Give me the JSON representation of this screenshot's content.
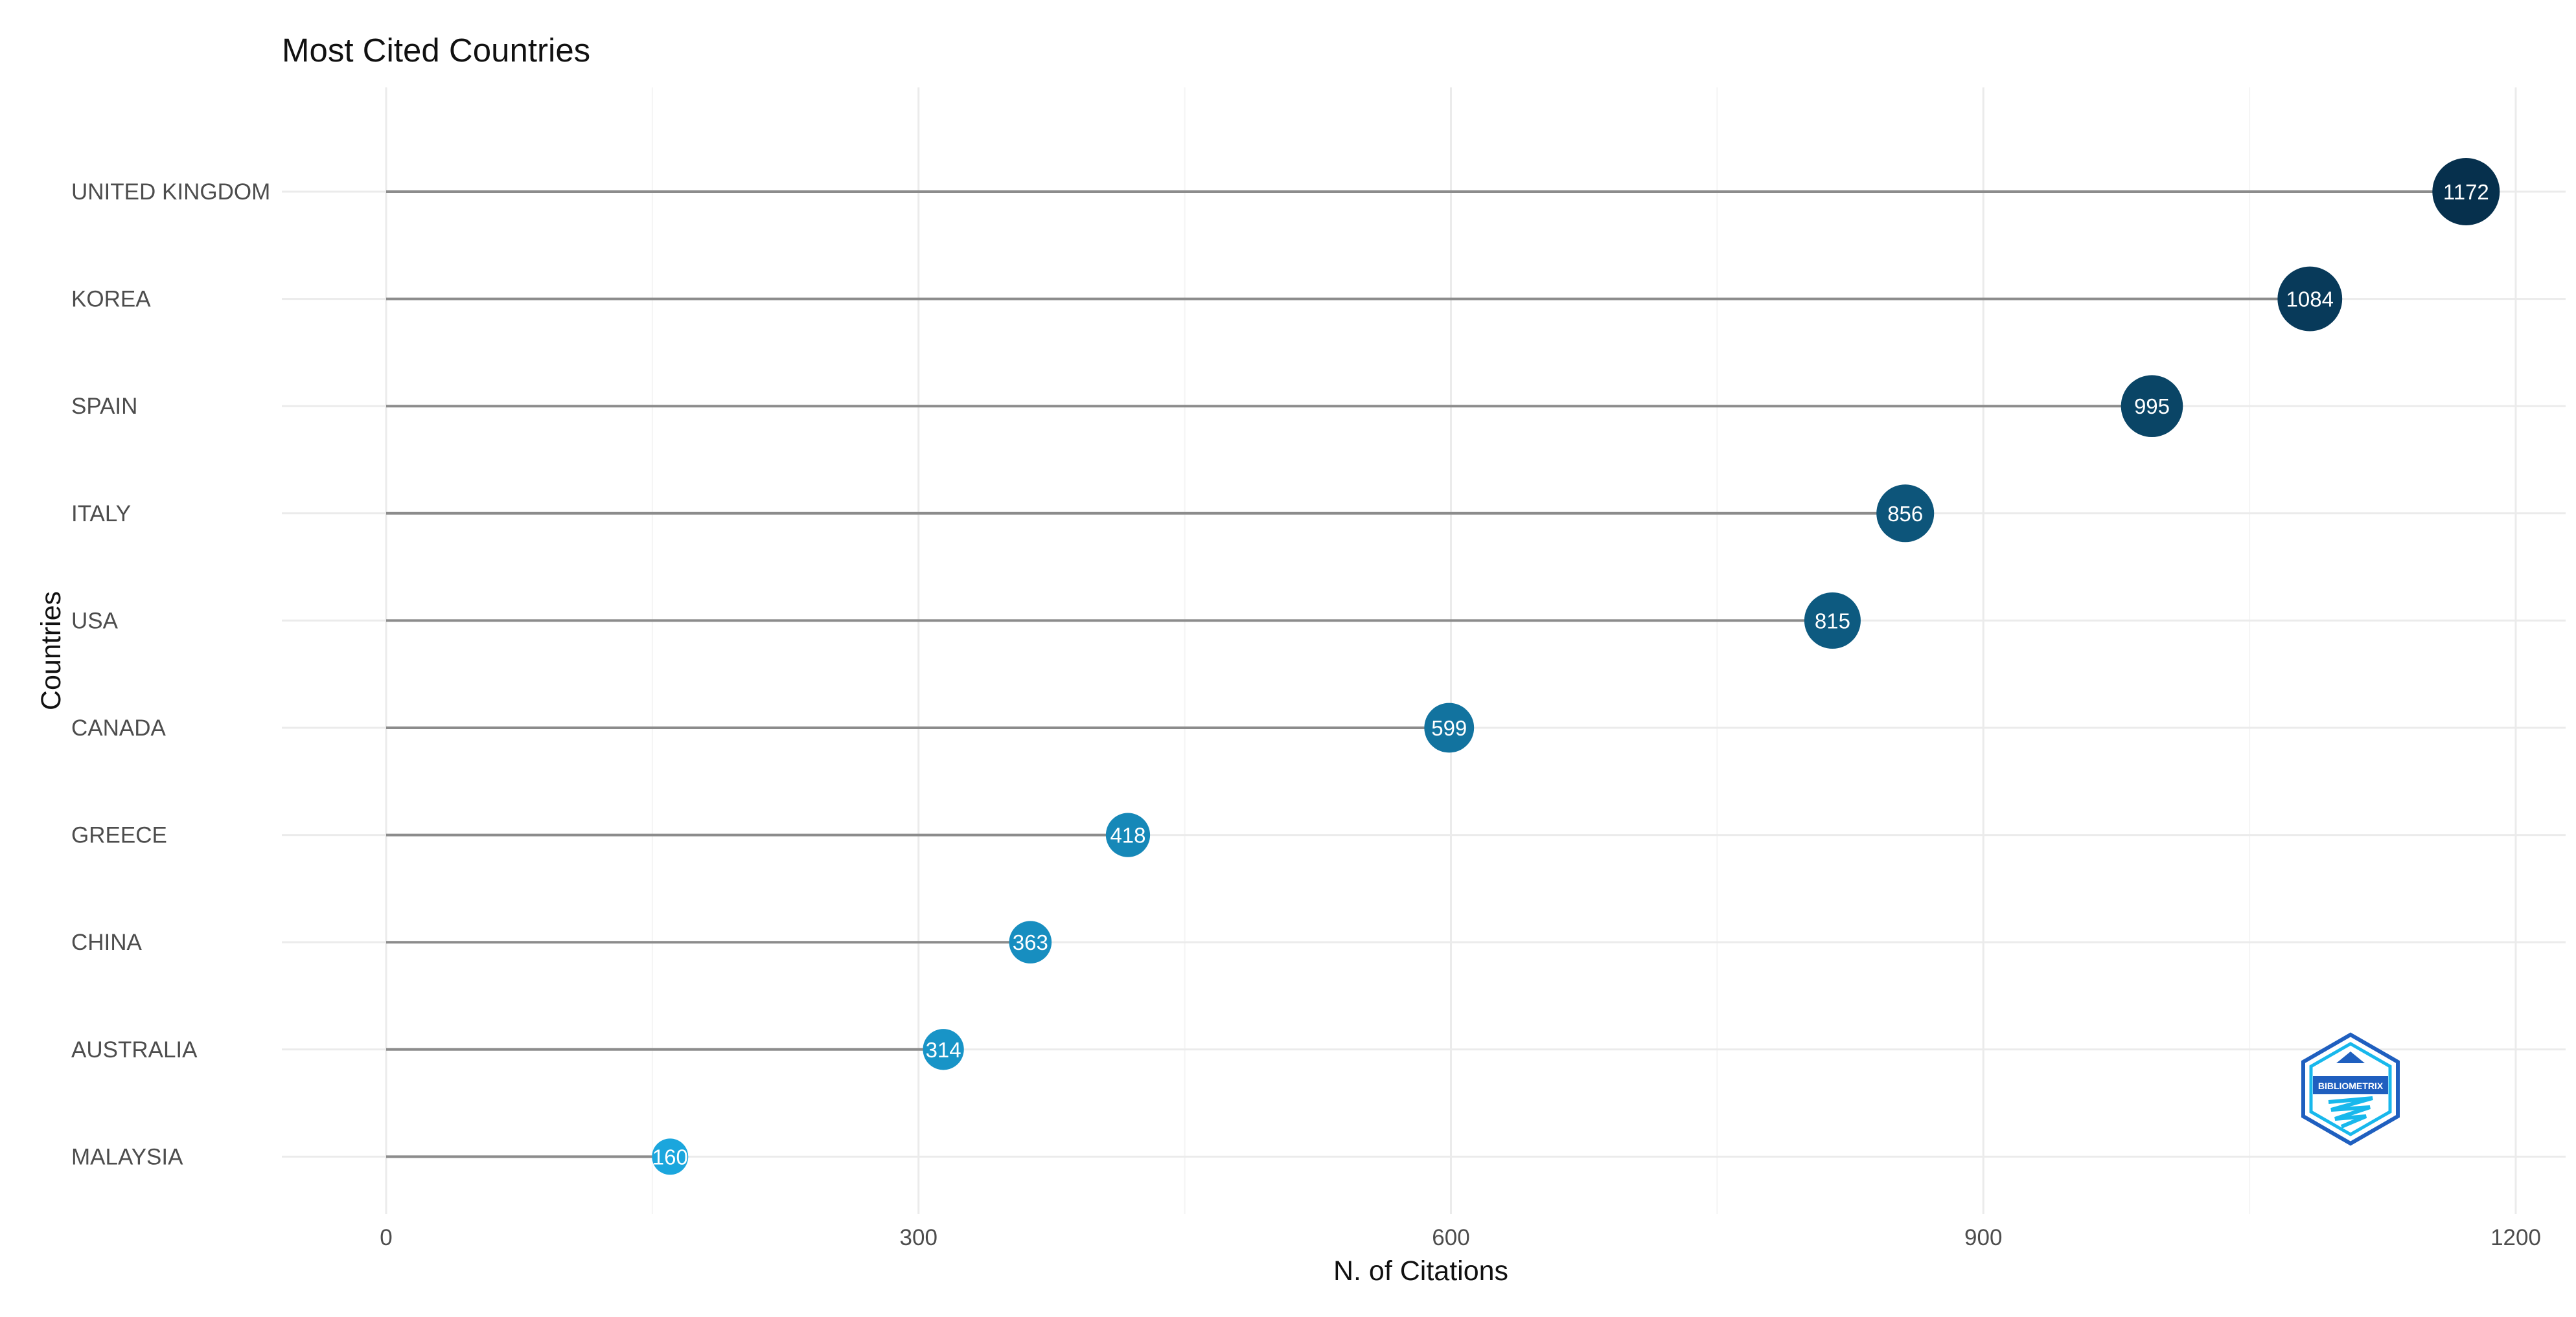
{
  "chart_data": {
    "type": "lollipop",
    "title": "Most Cited Countries",
    "xlabel": "N. of Citations",
    "ylabel": "Countries",
    "categories": [
      "UNITED KINGDOM",
      "KOREA",
      "SPAIN",
      "ITALY",
      "USA",
      "CANADA",
      "GREECE",
      "CHINA",
      "AUSTRALIA",
      "MALAYSIA"
    ],
    "values": [
      1172,
      1084,
      995,
      856,
      815,
      599,
      418,
      363,
      314,
      160
    ],
    "value_labels": [
      "1172",
      "1084",
      "995",
      "856",
      "815",
      "599",
      "418",
      "363",
      "314",
      "160"
    ],
    "xlim": [
      0,
      1200
    ],
    "xticks": [
      0,
      300,
      600,
      900,
      1200
    ],
    "xtick_labels": [
      "0",
      "300",
      "600",
      "900",
      "1200"
    ],
    "grid": true,
    "color_low": "#1ba6dd",
    "color_high": "#06304d",
    "logo": {
      "icon": "bibliometrix-hexagon-logo",
      "text": "BIBLIOMETRIX",
      "colors": [
        "#1f5fbf",
        "#18b8ec"
      ]
    }
  }
}
